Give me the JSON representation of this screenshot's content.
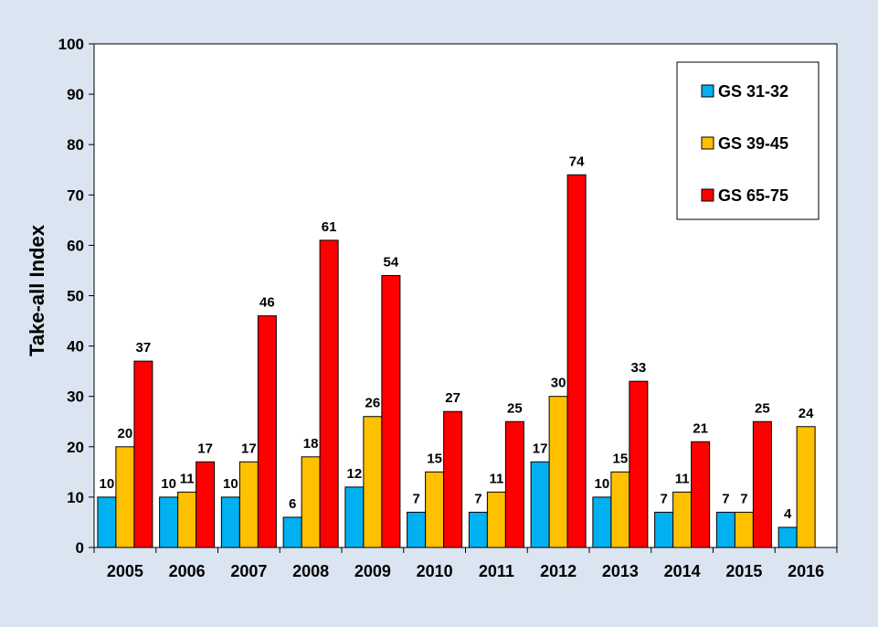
{
  "chart_data": {
    "type": "bar",
    "title": "",
    "xlabel": "",
    "ylabel": "Take-all Index",
    "ylim": [
      0,
      100
    ],
    "yticks": [
      0,
      10,
      20,
      30,
      40,
      50,
      60,
      70,
      80,
      90,
      100
    ],
    "grid": false,
    "legend_position": "top-right",
    "categories": [
      "2005",
      "2006",
      "2007",
      "2008",
      "2009",
      "2010",
      "2011",
      "2012",
      "2013",
      "2014",
      "2015",
      "2016"
    ],
    "series": [
      {
        "name": "GS 31-32",
        "color": "#00b0f0",
        "values": [
          10,
          10,
          10,
          6,
          12,
          7,
          7,
          17,
          10,
          7,
          7,
          4
        ]
      },
      {
        "name": "GS 39-45",
        "color": "#ffc000",
        "values": [
          20,
          11,
          17,
          18,
          26,
          15,
          11,
          30,
          15,
          11,
          7,
          24
        ]
      },
      {
        "name": "GS 65-75",
        "color": "#ff0000",
        "values": [
          37,
          17,
          46,
          61,
          54,
          27,
          25,
          74,
          33,
          21,
          25,
          null
        ]
      }
    ]
  }
}
